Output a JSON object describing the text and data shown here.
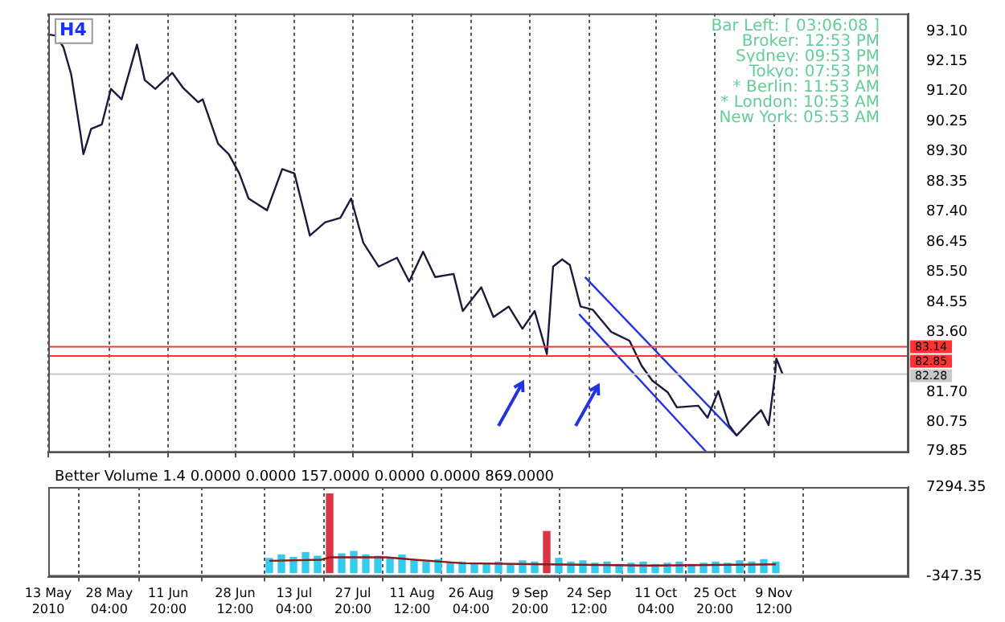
{
  "chart_data": [
    {
      "type": "line",
      "annotations": [
        "H4",
        "Bar Left: [ 03:06:08 ]",
        "Broker: 12:53 PM",
        "Sydney: 09:53 PM",
        "Tokyo: 07:53 PM",
        "* Berlin: 11:53 AM",
        "* London: 10:53 AM",
        "New York: 05:53 AM"
      ],
      "x": [
        "2010-05-13T00:00",
        "2010-05-14T22:00",
        "2010-05-16T19:00",
        "2010-05-18T17:00",
        "2010-05-21T00:00",
        "2010-05-21T18:00",
        "2010-05-23T16:00",
        "2010-05-26T08:00",
        "2010-05-28T14:00",
        "2010-05-31T06:00",
        "2010-06-04T02:00",
        "2010-06-06T00:00",
        "2010-06-08T15:00",
        "2010-06-12T20:00",
        "2010-06-15T12:00",
        "2010-06-19T07:00",
        "2010-06-20T10:00",
        "2010-06-24T06:00",
        "2010-06-26T22:00",
        "2010-06-29T13:00",
        "2010-07-01T20:00",
        "2010-07-06T10:00",
        "2010-07-10T05:00",
        "2010-07-13T06:00",
        "2010-07-17T02:00",
        "2010-07-20T21:00",
        "2010-07-24T16:00",
        "2010-07-27T08:00",
        "2010-07-30T09:00",
        "2010-08-03T05:00",
        "2010-08-07T18:00",
        "2010-08-10T19:00",
        "2010-08-14T06:00",
        "2010-08-17T06:00",
        "2010-08-21T20:00",
        "2010-08-24T03:00",
        "2010-08-28T17:00",
        "2010-08-31T18:00",
        "2010-09-04T13:00",
        "2010-09-07T23:00",
        "2010-09-11T00:00",
        "2010-09-14T01:00",
        "2010-09-15T14:00",
        "2010-09-17T20:00",
        "2010-09-19T18:00",
        "2010-09-22T10:00",
        "2010-09-25T11:00",
        "2010-09-30T01:00",
        "2010-10-04T14:00",
        "2010-10-07T15:00",
        "2010-10-10T07:00",
        "2010-10-14T03:00",
        "2010-10-16T09:00",
        "2010-10-21T17:00",
        "2010-10-24T00:00",
        "2010-10-26T16:00",
        "2010-10-29T08:00",
        "2010-10-31T06:00",
        "2010-11-04T10:00",
        "2010-11-06T08:00",
        "2010-11-08T05:00",
        "2010-11-09T18:00",
        "2010-11-10T03:00",
        "2010-11-11T16:00"
      ],
      "series": [
        {
          "color": "#1a1a3a",
          "values": [
            93.0,
            92.96,
            92.59,
            91.74,
            89.88,
            89.22,
            90.02,
            90.16,
            91.28,
            90.95,
            92.68,
            91.56,
            91.28,
            91.79,
            91.32,
            90.86,
            90.95,
            89.55,
            89.22,
            88.61,
            87.82,
            87.45,
            88.75,
            88.61,
            86.65,
            87.07,
            87.21,
            87.82,
            86.42,
            85.67,
            85.95,
            85.2,
            86.14,
            85.34,
            85.44,
            84.27,
            85.02,
            84.08,
            84.41,
            83.71,
            84.27,
            82.91,
            85.67,
            85.9,
            85.72,
            84.41,
            84.31,
            83.61,
            83.33,
            82.54,
            82.07,
            81.7,
            81.23,
            81.28,
            80.9,
            81.74,
            80.67,
            80.34,
            80.9,
            81.14,
            80.67,
            82.21,
            82.77,
            82.28
          ]
        },
        {
          "type": "line",
          "color": "#2233dd",
          "x": [
            "2010-09-23T13:00",
            "2010-10-31T06:00"
          ],
          "values": [
            85.34,
            80.34
          ]
        },
        {
          "type": "line",
          "color": "#2233dd",
          "x": [
            "2010-09-22T01:00",
            "2010-10-23T15:00"
          ],
          "values": [
            84.17,
            79.83
          ]
        }
      ],
      "xlim": [
        "2010-05-13T00:00",
        "2010-12-13T00:00"
      ],
      "xticks": [
        {
          "value": "2010-05-13T00:00",
          "label": null
        },
        {
          "value": "2010-05-28T04:00",
          "label": null
        },
        {
          "value": "2010-06-11T20:00",
          "label": null
        },
        {
          "value": "2010-06-28T12:00",
          "label": null
        },
        {
          "value": "2010-07-13T04:00",
          "label": null
        },
        {
          "value": "2010-07-27T20:00",
          "label": null
        },
        {
          "value": "2010-08-11T12:00",
          "label": null
        },
        {
          "value": "2010-08-26T04:00",
          "label": null
        },
        {
          "value": "2010-09-09T20:00",
          "label": null
        },
        {
          "value": "2010-09-24T12:00",
          "label": null
        },
        {
          "value": "2010-10-11T04:00",
          "label": null
        },
        {
          "value": "2010-10-25T20:00",
          "label": null
        },
        {
          "value": "2010-11-09T12:00",
          "label": null
        }
      ],
      "ylim": [
        79.8,
        93.66
      ],
      "yticks": [
        {
          "value": 93.1,
          "label": "93.10"
        },
        92.15,
        {
          "value": 91.2,
          "label": "91.20"
        },
        90.25,
        {
          "value": 89.3,
          "label": "89.30"
        },
        88.35,
        {
          "value": 87.4,
          "label": "87.40"
        },
        86.45,
        {
          "value": 85.5,
          "label": "85.50"
        },
        84.55,
        {
          "value": 83.6,
          "label": "83.60"
        },
        {
          "value": 81.7,
          "label": "81.70"
        },
        80.75,
        79.85
      ],
      "ref_lines": [
        {
          "axis": "y",
          "value": 83.14,
          "label": "83.14",
          "color": "#ff3333"
        },
        {
          "axis": "y",
          "value": 82.85,
          "label": "82.85",
          "color": "#ff3333"
        },
        {
          "axis": "y",
          "value": 82.28,
          "label": "82.28",
          "color": "#c8c8c8"
        }
      ],
      "grid": "x",
      "tick_labels": "y"
    },
    {
      "type": "bar",
      "title": "Better Volume 1.4 0.0000 0.0000 157.0000 0.0000 0.0000 869.0000",
      "series": [
        {
          "x": [
            "2010-07-07",
            "2010-07-10",
            "2010-07-13",
            "2010-07-16",
            "2010-07-19",
            "2010-07-22",
            "2010-07-25",
            "2010-07-28",
            "2010-07-31",
            "2010-08-03",
            "2010-08-06",
            "2010-08-09",
            "2010-08-12",
            "2010-08-15",
            "2010-08-18",
            "2010-08-21",
            "2010-08-24",
            "2010-08-27",
            "2010-08-30",
            "2010-09-02",
            "2010-09-05",
            "2010-09-08",
            "2010-09-11",
            "2010-09-14",
            "2010-09-17",
            "2010-09-20",
            "2010-09-23",
            "2010-09-26",
            "2010-09-29",
            "2010-10-02",
            "2010-10-05",
            "2010-10-08",
            "2010-10-11",
            "2010-10-14",
            "2010-10-17",
            "2010-10-20",
            "2010-10-23",
            "2010-10-26",
            "2010-10-29",
            "2010-11-01",
            "2010-11-04",
            "2010-11-07",
            "2010-11-10"
          ],
          "values": [
            1200,
            1500,
            1300,
            1700,
            1400,
            6700,
            1600,
            1800,
            1500,
            1400,
            1300,
            1500,
            1000,
            900,
            1100,
            800,
            900,
            700,
            800,
            900,
            700,
            1000,
            900,
            3500,
            1200,
            900,
            1000,
            800,
            900,
            700,
            800,
            900,
            700,
            800,
            900,
            700,
            800,
            900,
            800,
            1000,
            900,
            1100,
            900
          ],
          "colors": [
            "#33ccee",
            "#33ccee",
            "#33ccee",
            "#33ccee",
            "#33ccee",
            "#dd3344",
            "#33ccee",
            "#33ccee",
            "#33ccee",
            "#33ccee",
            "#33ccee",
            "#33ccee",
            "#33ccee",
            "#33ccee",
            "#33ccee",
            "#33ccee",
            "#33ccee",
            "#33ccee",
            "#33ccee",
            "#33ccee",
            "#33ccee",
            "#33ccee",
            "#33ccee",
            "#dd3344",
            "#33ccee",
            "#33ccee",
            "#33ccee",
            "#33ccee",
            "#33ccee",
            "#33ccee",
            "#33ccee",
            "#33ccee",
            "#33ccee",
            "#33ccee",
            "#33ccee",
            "#33ccee",
            "#33ccee",
            "#33ccee",
            "#33ccee",
            "#33ccee",
            "#33ccee",
            "#33ccee",
            "#33ccee"
          ]
        },
        {
          "type": "line",
          "color": "#8b1a1a",
          "x": [
            "2010-07-07",
            "2010-07-20",
            "2010-07-22",
            "2010-08-05",
            "2010-08-12",
            "2010-08-24",
            "2010-09-14",
            "2010-10-10",
            "2010-11-10"
          ],
          "values": [
            1000,
            1100,
            1300,
            1300,
            1100,
            800,
            700,
            600,
            700
          ]
        }
      ],
      "xlim": [
        "2010-05-13T00:00",
        "2010-12-13T00:00"
      ],
      "xticks": [
        {
          "value": "2010-05-13T00:00",
          "label": "13 May 2010"
        },
        {
          "value": "2010-05-28T04:00",
          "label": "28 May 04:00"
        },
        {
          "value": "2010-06-11T20:00",
          "label": "11 Jun 20:00"
        },
        {
          "value": "2010-06-28T12:00",
          "label": "28 Jun 12:00"
        },
        {
          "value": "2010-07-13T04:00",
          "label": "13 Jul 04:00"
        },
        {
          "value": "2010-07-27T20:00",
          "label": "27 Jul 20:00"
        },
        {
          "value": "2010-08-11T12:00",
          "label": "11 Aug 12:00"
        },
        {
          "value": "2010-08-26T04:00",
          "label": "26 Aug 04:00"
        },
        {
          "value": "2010-09-09T20:00",
          "label": "9 Sep 20:00"
        },
        {
          "value": "2010-09-24T12:00",
          "label": "24 Sep 12:00"
        },
        {
          "value": "2010-10-11T04:00",
          "label": "11 Oct 04:00"
        },
        {
          "value": "2010-10-25T20:00",
          "label": "25 Oct 20:00"
        },
        {
          "value": "2010-11-09T12:00",
          "label": "9 Nov 12:00"
        }
      ],
      "ylim": [
        -347.35,
        7294.35
      ],
      "yticks": [
        7294.35,
        -347.35
      ],
      "grid": "x"
    }
  ]
}
